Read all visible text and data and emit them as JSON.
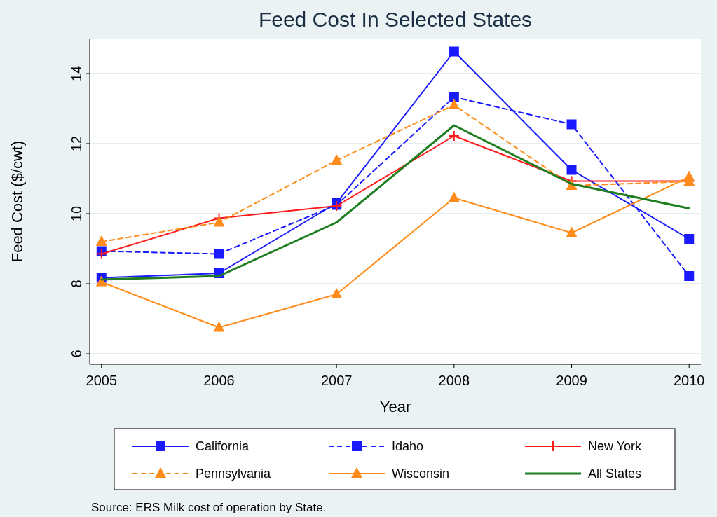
{
  "chart_data": {
    "type": "line",
    "title": "Feed Cost In Selected States",
    "xlabel": "Year",
    "ylabel": "Feed Cost ($/cwt)",
    "x": [
      2005,
      2006,
      2007,
      2008,
      2009,
      2010
    ],
    "series": [
      {
        "name": "California",
        "color": "#1a1aff",
        "marker": "square",
        "line_style": "solid",
        "values": [
          8.17,
          8.3,
          10.3,
          14.63,
          11.25,
          9.28
        ]
      },
      {
        "name": "Idaho",
        "color": "#1a1aff",
        "marker": "square",
        "line_style": "dashed",
        "values": [
          8.93,
          8.85,
          10.25,
          13.33,
          12.55,
          8.22
        ]
      },
      {
        "name": "New York",
        "color": "#ff1a1a",
        "marker": "cross",
        "line_style": "solid",
        "values": [
          8.85,
          9.87,
          10.22,
          12.22,
          10.93,
          10.93
        ]
      },
      {
        "name": "Pennsylvania",
        "color": "#ff8c1a",
        "marker": "triangle",
        "line_style": "dashed",
        "values": [
          9.2,
          9.75,
          11.52,
          13.1,
          10.8,
          10.92
        ]
      },
      {
        "name": "Wisconsin",
        "color": "#ff8c1a",
        "marker": "triangle",
        "line_style": "solid",
        "values": [
          8.05,
          6.75,
          7.7,
          10.45,
          9.45,
          11.05
        ]
      },
      {
        "name": "All States",
        "color": "#1e7d1e",
        "marker": "none",
        "line_style": "solid",
        "values": [
          8.12,
          8.22,
          9.75,
          12.52,
          10.85,
          10.15
        ]
      }
    ],
    "xlim": [
      2004.9,
      2010.1
    ],
    "xticks": [
      2005,
      2006,
      2007,
      2008,
      2009,
      2010
    ],
    "ylim": [
      5.7,
      15
    ],
    "yticks": [
      6,
      8,
      10,
      12,
      14
    ],
    "grid": "y",
    "legend": "bottom",
    "annotations": [
      "Source: ERS Milk cost of operation by State."
    ]
  }
}
